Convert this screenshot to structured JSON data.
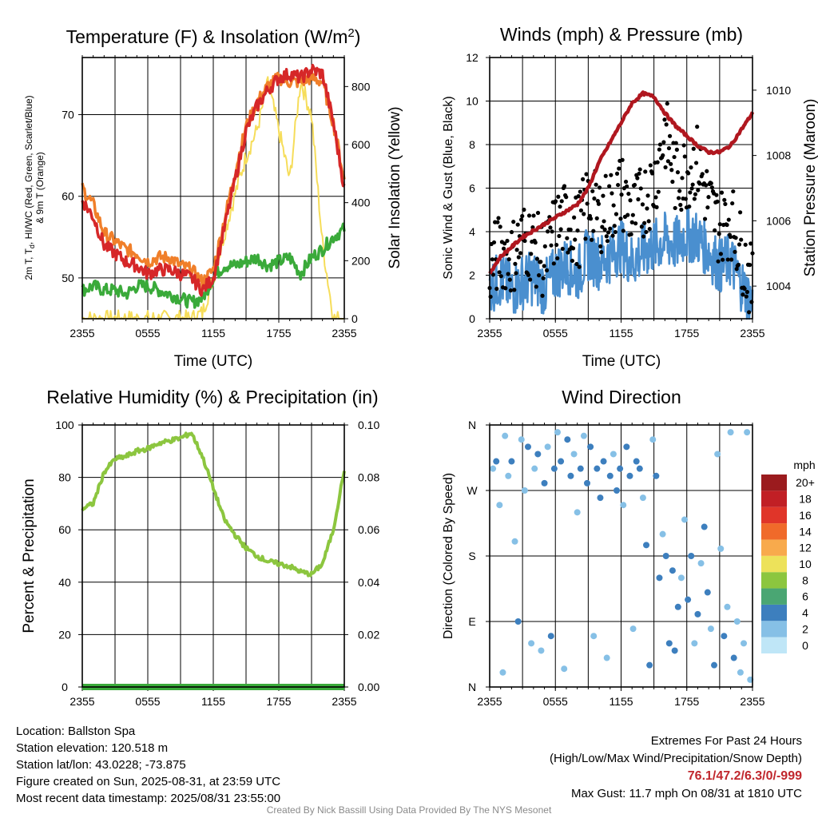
{
  "chart_data": [
    {
      "type": "line",
      "title": "Temperature (F) & Insolation (W/m²)",
      "xlabel": "Time (UTC)",
      "ylabel_left": "2m T, Td, HI/WC (Red, Green, Scarlet/Blue) & 9m T (Orange)",
      "ylabel_right": "Solar Insolation (Yellow)",
      "x_ticks": [
        "2355",
        "0555",
        "1155",
        "1755",
        "2355"
      ],
      "ylim": [
        45,
        77
      ],
      "y_ticks": [
        50,
        60,
        70
      ],
      "y2lim": [
        0,
        900
      ],
      "y2_ticks": [
        0,
        200,
        400,
        600,
        800
      ],
      "grid": true,
      "x_hours": [
        0,
        1,
        2,
        3,
        4,
        5,
        6,
        7,
        8,
        9,
        10,
        11,
        12,
        13,
        14,
        15,
        16,
        17,
        18,
        19,
        20,
        21,
        22,
        23,
        24
      ],
      "series": [
        {
          "key": "t2m",
          "axis": "left",
          "color": "#d62728",
          "values": [
            59.5,
            57.5,
            54,
            53,
            52,
            51.5,
            50.5,
            51,
            51,
            50.5,
            50,
            48.5,
            50,
            56,
            62,
            68,
            71,
            73,
            74.5,
            75,
            74.5,
            75.5,
            75,
            69,
            61
          ]
        },
        {
          "key": "t9m",
          "axis": "left",
          "color": "#f07f2a",
          "values": [
            61,
            59,
            55.5,
            54.5,
            53.5,
            53,
            52,
            52.5,
            52.5,
            51.5,
            51,
            49.5,
            51,
            57,
            63,
            68.5,
            71.5,
            73.5,
            74.5,
            74,
            74,
            74.5,
            74,
            69,
            62
          ]
        },
        {
          "key": "td2m",
          "axis": "left",
          "color": "#3aaa3a",
          "values": [
            48.5,
            49,
            48.5,
            48.5,
            48,
            49,
            49,
            48.5,
            48,
            47.5,
            47,
            47.5,
            50,
            51.5,
            51.5,
            52,
            52.5,
            51.5,
            52,
            52.5,
            50.5,
            52.5,
            53.5,
            55,
            56
          ]
        },
        {
          "key": "solar",
          "axis": "right",
          "color": "#f6dd5a",
          "values": [
            0,
            0,
            0,
            0,
            0,
            0,
            0,
            0,
            0,
            0,
            0,
            20,
            140,
            290,
            430,
            560,
            650,
            810,
            650,
            480,
            820,
            700,
            260,
            0,
            0
          ]
        }
      ]
    },
    {
      "type": "scatter",
      "title": "Winds (mph) & Pressure (mb)",
      "xlabel": "Time (UTC)",
      "ylabel_left": "Sonic Wind & Gust (Blue, Black)",
      "ylabel_right": "Station Pressure (Maroon)",
      "x_ticks": [
        "2355",
        "0555",
        "1155",
        "1755",
        "2355"
      ],
      "ylim": [
        0,
        12
      ],
      "y_ticks": [
        0,
        2,
        4,
        6,
        8,
        10,
        12
      ],
      "y2lim": [
        1003.0,
        1011.0
      ],
      "y2_ticks": [
        1004,
        1006,
        1008,
        1010
      ],
      "grid": true,
      "x_hours": [
        0,
        1,
        2,
        3,
        4,
        5,
        6,
        7,
        8,
        9,
        10,
        11,
        12,
        13,
        14,
        15,
        16,
        17,
        18,
        19,
        20,
        21,
        22,
        23,
        24
      ],
      "series": [
        {
          "key": "wind",
          "color": "#4a8fcf",
          "values": [
            1.5,
            1.8,
            1.3,
            1.7,
            1.9,
            1.4,
            2.1,
            2.5,
            2.0,
            3.0,
            2.6,
            2.9,
            3.4,
            2.6,
            3.1,
            3.3,
            3.6,
            3.4,
            3.9,
            3.7,
            3.1,
            2.4,
            2.7,
            1.6,
            0.6
          ]
        },
        {
          "key": "gust",
          "color": "#000000",
          "values": [
            2.3,
            3.2,
            2.8,
            3.7,
            3.4,
            2.6,
            4.1,
            4.6,
            3.9,
            5.4,
            4.8,
            5.1,
            5.9,
            4.7,
            5.4,
            6.2,
            8.6,
            6.4,
            6.8,
            7.2,
            5.3,
            4.2,
            4.6,
            3.1,
            1.4
          ]
        },
        {
          "key": "pressure",
          "axis": "right",
          "color": "#b0171f",
          "values": [
            1004.4,
            1004.9,
            1005.2,
            1005.5,
            1005.7,
            1005.9,
            1006.1,
            1006.3,
            1006.5,
            1007.0,
            1007.8,
            1008.4,
            1009.0,
            1009.6,
            1009.9,
            1009.8,
            1009.3,
            1008.9,
            1008.6,
            1008.3,
            1008.1,
            1008.1,
            1008.3,
            1008.8,
            1009.3
          ]
        }
      ]
    },
    {
      "type": "line",
      "title": "Relative Humidity (%) & Precipitation (in)",
      "xlabel": "",
      "ylabel_left": "Percent & Precipitation",
      "x_ticks": [
        "2355",
        "0555",
        "1155",
        "1755",
        "2355"
      ],
      "ylim": [
        0,
        100
      ],
      "y_ticks": [
        0,
        20,
        40,
        60,
        80,
        100
      ],
      "y2lim": [
        0,
        0.1
      ],
      "y2_ticks": [
        "0.00",
        "0.02",
        "0.04",
        "0.06",
        "0.08",
        "0.10"
      ],
      "grid": true,
      "x_hours": [
        0,
        1,
        2,
        3,
        4,
        5,
        6,
        7,
        8,
        9,
        10,
        11,
        12,
        13,
        14,
        15,
        16,
        17,
        18,
        19,
        20,
        21,
        22,
        23,
        24
      ],
      "series": [
        {
          "key": "rh",
          "color": "#8cc63f",
          "values": [
            68,
            70,
            82,
            87,
            88,
            90,
            91,
            93,
            94,
            95,
            97,
            88,
            76,
            64,
            58,
            53,
            50,
            48,
            47,
            46,
            44,
            43,
            47,
            60,
            83
          ]
        },
        {
          "key": "precip",
          "axis": "right",
          "color": "#3aaa3a",
          "values": [
            0,
            0,
            0,
            0,
            0,
            0,
            0,
            0,
            0,
            0,
            0,
            0,
            0,
            0,
            0,
            0,
            0,
            0,
            0,
            0,
            0,
            0,
            0,
            0,
            0
          ]
        }
      ]
    },
    {
      "type": "scatter",
      "title": "Wind Direction",
      "ylabel_left": "Direction (Colored By Speed)",
      "x_ticks": [
        "2355",
        "0555",
        "1155",
        "1755",
        "2355"
      ],
      "y_ticks": [
        "N",
        "E",
        "S",
        "W",
        "N"
      ],
      "ylim": [
        0,
        360
      ],
      "grid": true,
      "colorbar": {
        "unit": "mph",
        "labels": [
          "0",
          "2",
          "4",
          "6",
          "8",
          "10",
          "12",
          "14",
          "16",
          "18",
          "20+"
        ],
        "colors": [
          "#bfe6f7",
          "#86c0e6",
          "#3d7fbe",
          "#4aa673",
          "#8cc63f",
          "#ede25a",
          "#f8aa4c",
          "#f06a2a",
          "#e03529",
          "#c11f25",
          "#9b1b1e"
        ]
      },
      "points": [
        [
          0.3,
          300,
          2
        ],
        [
          0.6,
          310,
          3
        ],
        [
          0.9,
          250,
          2
        ],
        [
          1.2,
          20,
          2
        ],
        [
          1.4,
          345,
          1
        ],
        [
          1.7,
          290,
          2
        ],
        [
          2.0,
          310,
          3
        ],
        [
          2.3,
          200,
          1
        ],
        [
          2.6,
          90,
          3
        ],
        [
          2.9,
          340,
          1
        ],
        [
          3.2,
          270,
          2
        ],
        [
          3.5,
          330,
          3
        ],
        [
          3.8,
          60,
          1
        ],
        [
          4.1,
          300,
          2
        ],
        [
          4.4,
          320,
          3
        ],
        [
          4.7,
          50,
          2
        ],
        [
          5.0,
          280,
          3
        ],
        [
          5.3,
          330,
          2
        ],
        [
          5.6,
          70,
          3
        ],
        [
          5.9,
          300,
          3
        ],
        [
          6.2,
          350,
          1
        ],
        [
          6.5,
          310,
          3
        ],
        [
          6.8,
          25,
          2
        ],
        [
          7.1,
          340,
          3
        ],
        [
          7.4,
          290,
          3
        ],
        [
          7.7,
          320,
          2
        ],
        [
          8.0,
          240,
          1
        ],
        [
          8.3,
          300,
          3
        ],
        [
          8.6,
          345,
          1
        ],
        [
          8.9,
          280,
          3
        ],
        [
          9.2,
          330,
          3
        ],
        [
          9.5,
          70,
          1
        ],
        [
          9.8,
          300,
          3
        ],
        [
          10.1,
          260,
          3
        ],
        [
          10.4,
          310,
          3
        ],
        [
          10.7,
          40,
          1
        ],
        [
          11.0,
          290,
          3
        ],
        [
          11.3,
          320,
          2
        ],
        [
          11.6,
          270,
          3
        ],
        [
          11.9,
          300,
          3
        ],
        [
          12.2,
          250,
          2
        ],
        [
          12.5,
          330,
          3
        ],
        [
          12.8,
          290,
          3
        ],
        [
          13.1,
          80,
          2
        ],
        [
          13.4,
          310,
          3
        ],
        [
          13.7,
          300,
          3
        ],
        [
          14.0,
          260,
          2
        ],
        [
          14.3,
          195,
          3
        ],
        [
          14.6,
          30,
          3
        ],
        [
          14.9,
          340,
          2
        ],
        [
          15.2,
          290,
          4
        ],
        [
          15.5,
          150,
          3
        ],
        [
          15.8,
          210,
          2
        ],
        [
          16.1,
          180,
          3
        ],
        [
          16.4,
          60,
          3
        ],
        [
          16.7,
          160,
          4
        ],
        [
          16.9,
          50,
          3
        ],
        [
          17.2,
          110,
          3
        ],
        [
          17.5,
          150,
          2
        ],
        [
          17.8,
          230,
          1
        ],
        [
          18.1,
          120,
          3
        ],
        [
          18.4,
          180,
          3
        ],
        [
          18.7,
          60,
          2
        ],
        [
          19.0,
          100,
          3
        ],
        [
          19.3,
          170,
          2
        ],
        [
          19.6,
          220,
          3
        ],
        [
          19.9,
          130,
          3
        ],
        [
          20.2,
          80,
          2
        ],
        [
          20.5,
          30,
          3
        ],
        [
          20.8,
          320,
          2
        ],
        [
          21.1,
          190,
          1
        ],
        [
          21.4,
          70,
          3
        ],
        [
          21.7,
          110,
          2
        ],
        [
          22.0,
          350,
          1
        ],
        [
          22.3,
          40,
          3
        ],
        [
          22.6,
          90,
          2
        ],
        [
          22.9,
          20,
          2
        ],
        [
          23.2,
          60,
          1
        ],
        [
          23.5,
          350,
          1
        ],
        [
          23.8,
          10,
          1
        ]
      ]
    }
  ],
  "footer_left": {
    "location": "Location: Ballston Spa",
    "elevation": "Station elevation: 120.518 m",
    "latlon": "Station lat/lon: 43.0228; -73.875",
    "created": "Figure created on Sun, 2025-08-31, at 23:59 UTC",
    "recent": "Most recent data timestamp: 2025/08/31 23:55:00"
  },
  "footer_right": {
    "heading": "Extremes For Past 24 Hours",
    "subheading": "(High/Low/Max Wind/Precipitation/Snow Depth)",
    "values": "76.1/47.2/6.3/0/-999",
    "gust": "Max Gust: 11.7 mph On 08/31 at 1810 UTC"
  },
  "credit": "Created By Nick Bassill Using Data Provided By The NYS Mesonet"
}
